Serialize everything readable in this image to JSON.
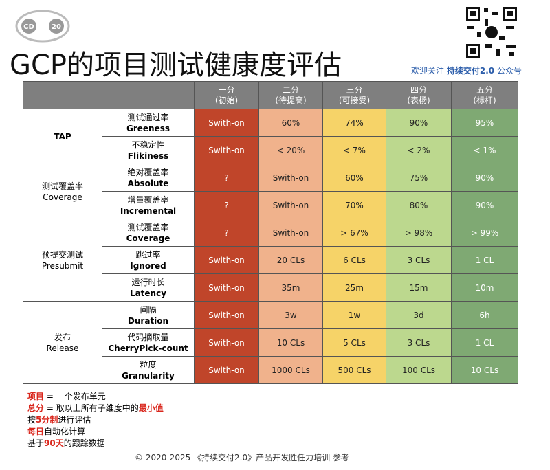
{
  "logo": {
    "left": "CD",
    "right": "20"
  },
  "header": {
    "title": "GCP的项目测试健康度评估",
    "follow_prefix": "欢迎关注",
    "follow_name": "持续交付2.0",
    "follow_suffix": "公众号"
  },
  "table": {
    "levels": [
      {
        "name": "一分",
        "note": "(初始)",
        "color": "#c0452a",
        "text_color": "#ffffff"
      },
      {
        "name": "二分",
        "note": "(待提高)",
        "color": "#f0b28c",
        "text_color": "#222222"
      },
      {
        "name": "三分",
        "note": "(可接受)",
        "color": "#f6d368",
        "text_color": "#222222"
      },
      {
        "name": "四分",
        "note": "(表杨)",
        "color": "#bcd88e",
        "text_color": "#222222"
      },
      {
        "name": "五分",
        "note": "(标杆)",
        "color": "#7fa973",
        "text_color": "#ffffff"
      }
    ],
    "groups": [
      {
        "name": "TAP",
        "metrics": [
          {
            "cn": "测试通过率",
            "en": "Greeness",
            "cells": [
              "Swith-on",
              "60%",
              "74%",
              "90%",
              "95%"
            ]
          },
          {
            "cn": "不稳定性",
            "en": "Flikiness",
            "cells": [
              "Swith-on",
              "< 20%",
              "< 7%",
              "< 2%",
              "< 1%"
            ]
          }
        ]
      },
      {
        "name": "测试覆盖率",
        "name_en": "Coverage",
        "metrics": [
          {
            "cn": "绝对覆盖率",
            "en": "Absolute",
            "cells": [
              "?",
              "Swith-on",
              "60%",
              "75%",
              "90%"
            ]
          },
          {
            "cn": "增量覆盖率",
            "en": "Incremental",
            "cells": [
              "?",
              "Swith-on",
              "70%",
              "80%",
              "90%"
            ]
          }
        ]
      },
      {
        "name": "预提交测试",
        "name_en": "Presubmit",
        "metrics": [
          {
            "cn": "测试覆盖率",
            "en": "Coverage",
            "cells": [
              "?",
              "Swith-on",
              "> 67%",
              "> 98%",
              "> 99%"
            ]
          },
          {
            "cn": "跳过率",
            "en": "Ignored",
            "cells": [
              "Swith-on",
              "20 CLs",
              "6 CLs",
              "3 CLs",
              "1 CL"
            ]
          },
          {
            "cn": "运行时长",
            "en": "Latency",
            "cells": [
              "Swith-on",
              "35m",
              "25m",
              "15m",
              "10m"
            ]
          }
        ]
      },
      {
        "name": "发布",
        "name_en": "Release",
        "metrics": [
          {
            "cn": "间隔",
            "en": "Duration",
            "cells": [
              "Swith-on",
              "3w",
              "1w",
              "3d",
              "6h"
            ]
          },
          {
            "cn": "代码摘取量",
            "en": "CherryPick-count",
            "cells": [
              "Swith-on",
              "10 CLs",
              "5 CLs",
              "3 CLs",
              "1 CL"
            ]
          },
          {
            "cn": "粒度",
            "en": "Granularity",
            "cells": [
              "Swith-on",
              "1000 CLs",
              "500 CLs",
              "100 CLs",
              "10 CLs"
            ]
          }
        ]
      }
    ]
  },
  "notes": [
    [
      {
        "text": "项目",
        "highlight": true
      },
      {
        "text": " = 一个发布单元",
        "highlight": false
      }
    ],
    [
      {
        "text": "总分",
        "highlight": true
      },
      {
        "text": " = 取以上所有子维度中的",
        "highlight": false
      },
      {
        "text": "最小值",
        "highlight": true
      }
    ],
    [
      {
        "text": "按",
        "highlight": false
      },
      {
        "text": "5分制",
        "highlight": true
      },
      {
        "text": "进行评估",
        "highlight": false
      }
    ],
    [
      {
        "text": "每日",
        "highlight": true
      },
      {
        "text": "自动化计算",
        "highlight": false
      }
    ],
    [
      {
        "text": "基于",
        "highlight": false
      },
      {
        "text": "90天",
        "highlight": true
      },
      {
        "text": "的跟踪数据",
        "highlight": false
      }
    ]
  ],
  "footer": "© 2020-2025 《持续交付2.0》产品开发胜任力培训 参考"
}
